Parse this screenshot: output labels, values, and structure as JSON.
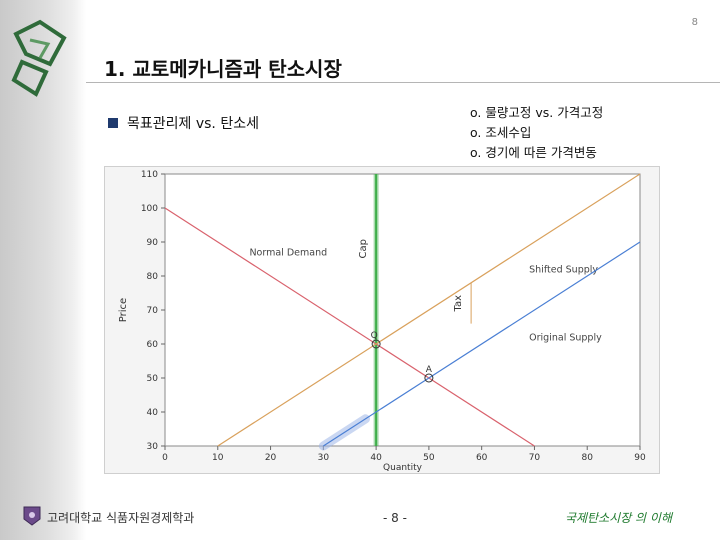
{
  "slide": {
    "number": "8",
    "title": "1. 교토메카니즘과 탄소시장",
    "bullet": "목표관리제 vs. 탄소세",
    "notes": [
      "o. 물량고정 vs. 가격고정",
      "o. 조세수입",
      "o. 경기에 따른 가격변동"
    ]
  },
  "footer": {
    "left": "고려대학교 식품자원경제학과",
    "center": "- 8 -",
    "right": "국제탄소시장 의 이해"
  },
  "colors": {
    "accent_green": "#1f7a2e",
    "bullet": "#1f3a6e",
    "demand": "#d9626d",
    "shifted_supply": "#d9a15c",
    "original_supply": "#4a7fd4",
    "cap": "#3fae4a"
  },
  "chart_data": {
    "type": "line",
    "xlabel": "Quantity",
    "ylabel": "Price",
    "xlim": [
      0,
      90
    ],
    "ylim": [
      30,
      110
    ],
    "xticks": [
      0,
      10,
      20,
      30,
      40,
      50,
      60,
      70,
      80,
      90
    ],
    "yticks": [
      30,
      40,
      50,
      60,
      70,
      80,
      90,
      100,
      110
    ],
    "grid": false,
    "series": [
      {
        "name": "Normal Demand",
        "x": [
          0,
          70
        ],
        "y": [
          100,
          30
        ]
      },
      {
        "name": "Shifted Supply",
        "x": [
          10,
          90
        ],
        "y": [
          30,
          110
        ]
      },
      {
        "name": "Original Supply",
        "x": [
          30,
          90
        ],
        "y": [
          30,
          90
        ]
      }
    ],
    "cap_line": {
      "label": "Cap",
      "x": 40
    },
    "tax_marker": {
      "label": "Tax",
      "x": 58,
      "y_from": 66,
      "y_to": 78
    },
    "points": [
      {
        "label": "Q",
        "x": 40,
        "y": 60
      },
      {
        "label": "A",
        "x": 50,
        "y": 50
      }
    ]
  }
}
